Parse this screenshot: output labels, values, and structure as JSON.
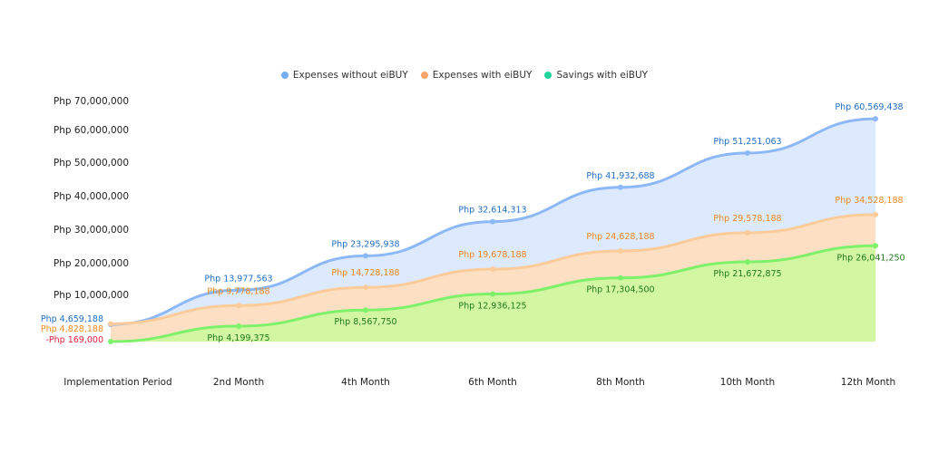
{
  "chart_data": {
    "type": "area",
    "title": "",
    "xlabel": "",
    "ylabel": "",
    "categories": [
      "Implementation Period",
      "2nd Month",
      "4th Month",
      "6th Month",
      "8th Month",
      "10th Month",
      "12th Month"
    ],
    "y_ticks": [
      "Php 70,000,000",
      "Php 60,000,000",
      "Php 50,000,000",
      "Php 40,000,000",
      "Php 30,000,000",
      "Php 20,000,000",
      "Php 10,000,000"
    ],
    "legend_position": "top-center",
    "series": [
      {
        "name": "Expenses without eiBUY",
        "line": "#8db8f7",
        "fill": "#dde9fc",
        "label_color": "#1f6fc5",
        "values": [
          4659188,
          13977563,
          23295938,
          32614313,
          41932688,
          51251063,
          60569438
        ],
        "labels": [
          "Php 4,659,188",
          "Php 13,977,563",
          "Php 23,295,938",
          "Php 32,614,313",
          "Php 41,932,688",
          "Php 51,251,063",
          "Php 60,569,438"
        ]
      },
      {
        "name": "Expenses with eiBUY",
        "line": "#fccb9a",
        "fill": "#fde0c3",
        "label_color": "#ee8a1f",
        "values": [
          4828188,
          9778188,
          14728188,
          19678188,
          24628188,
          29578188,
          34528188
        ],
        "labels": [
          "Php 4,828,188",
          "Php 9,778,188",
          "Php 14,728,188",
          "Php 19,678,188",
          "Php 24,628,188",
          "Php 29,578,188",
          "Php 34,528,188"
        ]
      },
      {
        "name": "Savings with eiBUY",
        "line": "#7ff06a",
        "fill": "#d2f6a1",
        "label_color": "#217a1f",
        "negative_label_color": "#e0233a",
        "values": [
          -169000,
          4199375,
          8567750,
          12936125,
          17304500,
          21672875,
          26041250
        ],
        "labels": [
          "-Php 169,000",
          "Php 4,199,375",
          "Php 8,567,750",
          "Php 12,936,125",
          "Php 17,304,500",
          "Php 21,672,875",
          "Php 26,041,250"
        ]
      }
    ],
    "legend_dot_colors": [
      "#74aef5",
      "#f9a66b",
      "#1fd39a"
    ]
  }
}
